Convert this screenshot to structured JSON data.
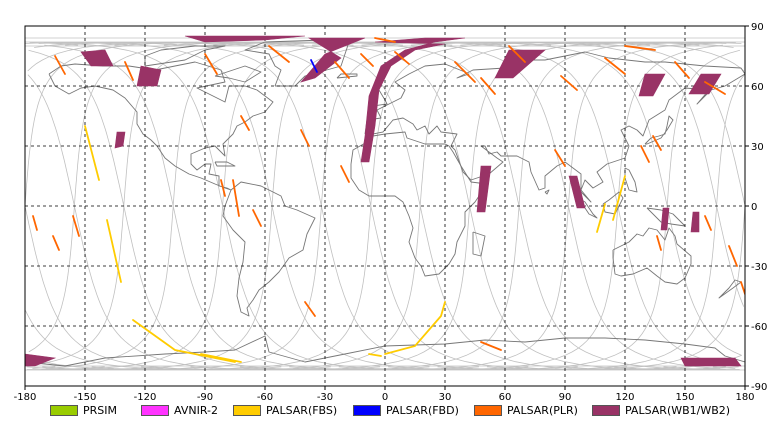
{
  "map": {
    "x_axis": {
      "min": -180,
      "max": 180,
      "ticks": [
        -180,
        -150,
        -120,
        -90,
        -60,
        -30,
        0,
        30,
        60,
        90,
        120,
        150,
        180
      ]
    },
    "y_axis": {
      "min": -90,
      "max": 90,
      "ticks": [
        90,
        60,
        30,
        0,
        -30,
        -60,
        -90
      ]
    },
    "grid": "dashed",
    "colors": {
      "PRSIM": "#99cc00",
      "AVNIR-2": "#ff33ff",
      "PALSAR(FBS)": "#ffcc00",
      "PALSAR(FBD)": "#0000ff",
      "PALSAR(PLR)": "#ff6600",
      "PALSAR(WB1/WB2)": "#993366",
      "orbit": "#c0c0c0",
      "coast": "#777777"
    }
  },
  "legend": [
    {
      "label": "PRSIM",
      "color": "#99cc00"
    },
    {
      "label": "AVNIR-2",
      "color": "#ff33ff"
    },
    {
      "label": "PALSAR(FBS)",
      "color": "#ffcc00"
    },
    {
      "label": "PALSAR(FBD)",
      "color": "#0000ff"
    },
    {
      "label": "PALSAR(PLR)",
      "color": "#ff6600"
    },
    {
      "label": "PALSAR(WB1/WB2)",
      "color": "#993366"
    }
  ],
  "chart_data": {
    "type": "scatter",
    "title": "",
    "xlim": [
      -180,
      180
    ],
    "ylim": [
      -90,
      90
    ],
    "series": [
      {
        "name": "PALSAR(WB1/WB2)",
        "type": "swath",
        "color": "#993366",
        "segments": [
          [
            [
              -5,
              82
            ],
            [
              20,
              84
            ],
            [
              40,
              84
            ],
            [
              25,
              82
            ],
            [
              10,
              78
            ],
            [
              -2,
              70
            ],
            [
              -8,
              55
            ],
            [
              -10,
              35
            ],
            [
              -12,
              22
            ],
            [
              -8,
              22
            ],
            [
              -5,
              40
            ],
            [
              -3,
              58
            ],
            [
              3,
              70
            ],
            [
              15,
              78
            ],
            [
              30,
              81
            ]
          ],
          [
            [
              -38,
              84
            ],
            [
              -10,
              84
            ],
            [
              -30,
              76
            ],
            [
              -42,
              62
            ],
            [
              -35,
              64
            ],
            [
              -22,
              74
            ]
          ],
          [
            [
              -100,
              85
            ],
            [
              -40,
              85
            ],
            [
              -60,
              83
            ],
            [
              -90,
              82
            ]
          ],
          [
            [
              -152,
              77
            ],
            [
              -140,
              78
            ],
            [
              -136,
              70
            ],
            [
              -147,
              70
            ]
          ],
          [
            [
              -122,
              70
            ],
            [
              -112,
              68
            ],
            [
              -114,
              60
            ],
            [
              -124,
              60
            ]
          ],
          [
            [
              -134,
              37
            ],
            [
              -130,
              37
            ],
            [
              -131,
              30
            ],
            [
              -135,
              29
            ]
          ],
          [
            [
              48,
              20
            ],
            [
              53,
              20
            ],
            [
              50,
              -3
            ],
            [
              46,
              -3
            ]
          ],
          [
            [
              92,
              15
            ],
            [
              96,
              15
            ],
            [
              100,
              -1
            ],
            [
              96,
              -1
            ]
          ],
          [
            [
              62,
              78
            ],
            [
              80,
              78
            ],
            [
              64,
              64
            ],
            [
              55,
              64
            ]
          ],
          [
            [
              130,
              66
            ],
            [
              140,
              66
            ],
            [
              134,
              55
            ],
            [
              127,
              55
            ]
          ],
          [
            [
              158,
              66
            ],
            [
              168,
              66
            ],
            [
              162,
              56
            ],
            [
              152,
              56
            ]
          ],
          [
            [
              139,
              -1
            ],
            [
              142,
              -1
            ],
            [
              141,
              -12
            ],
            [
              138,
              -12
            ]
          ],
          [
            [
              154,
              -3
            ],
            [
              157,
              -3
            ],
            [
              157,
              -13
            ],
            [
              153,
              -13
            ]
          ],
          [
            [
              -180,
              -74
            ],
            [
              -165,
              -76
            ],
            0,
            [
              -175,
              -80
            ],
            [
              -180,
              -80
            ]
          ],
          [
            [
              148,
              -76
            ],
            [
              175,
              -76
            ],
            [
              178,
              -80
            ],
            [
              150,
              -80
            ]
          ]
        ]
      },
      {
        "name": "PALSAR(FBS)",
        "type": "track",
        "color": "#ffcc00",
        "segments": [
          [
            [
              -150,
              40
            ],
            [
              -143,
              13
            ]
          ],
          [
            [
              -139,
              -7
            ],
            [
              -132,
              -38
            ]
          ],
          [
            [
              -126,
              -57
            ],
            [
              -105,
              -72
            ],
            [
              -85,
              -76
            ],
            [
              -75,
              -78
            ]
          ],
          [
            [
              -92,
              -74
            ],
            [
              -72,
              -78
            ]
          ],
          [
            [
              0,
              -74
            ],
            [
              15,
              -70
            ],
            [
              28,
              -55
            ],
            [
              30,
              -48
            ]
          ],
          [
            [
              -2,
              -75
            ],
            [
              -8,
              -74
            ]
          ],
          [
            [
              114,
              -7
            ],
            [
              120,
              15
            ]
          ],
          [
            [
              106,
              -13
            ],
            [
              110,
              1
            ]
          ]
        ]
      },
      {
        "name": "PALSAR(FBD)",
        "type": "track",
        "color": "#0000ff",
        "segments": [
          [
            [
              -37,
              73
            ],
            [
              -34,
              67
            ]
          ]
        ]
      },
      {
        "name": "PALSAR(PLR)",
        "type": "track",
        "color": "#ff6600",
        "segments": [
          [
            [
              -165,
              75
            ],
            [
              -160,
              66
            ]
          ],
          [
            [
              -130,
              72
            ],
            [
              -126,
              63
            ]
          ],
          [
            [
              -90,
              76
            ],
            [
              -84,
              66
            ]
          ],
          [
            [
              -58,
              80
            ],
            [
              -48,
              72
            ]
          ],
          [
            [
              -12,
              76
            ],
            [
              -6,
              70
            ]
          ],
          [
            [
              5,
              77
            ],
            [
              12,
              71
            ]
          ],
          [
            [
              -25,
              72
            ],
            [
              -18,
              64
            ]
          ],
          [
            [
              -5,
              84
            ],
            [
              5,
              82
            ]
          ],
          [
            [
              35,
              72
            ],
            [
              45,
              62
            ]
          ],
          [
            [
              48,
              64
            ],
            [
              55,
              56
            ]
          ],
          [
            [
              62,
              80
            ],
            [
              70,
              72
            ]
          ],
          [
            [
              88,
              65
            ],
            [
              96,
              58
            ]
          ],
          [
            [
              110,
              74
            ],
            [
              120,
              66
            ]
          ],
          [
            [
              120,
              80
            ],
            [
              135,
              78
            ]
          ],
          [
            [
              145,
              72
            ],
            [
              152,
              64
            ]
          ],
          [
            [
              160,
              62
            ],
            [
              170,
              56
            ]
          ],
          [
            [
              -72,
              45
            ],
            [
              -68,
              38
            ]
          ],
          [
            [
              -42,
              38
            ],
            [
              -38,
              30
            ]
          ],
          [
            [
              -22,
              20
            ],
            [
              -18,
              12
            ]
          ],
          [
            [
              -40,
              -48
            ],
            [
              -35,
              -55
            ]
          ],
          [
            [
              -176,
              -5
            ],
            [
              -174,
              -12
            ]
          ],
          [
            [
              -166,
              -15
            ],
            [
              -163,
              -22
            ]
          ],
          [
            [
              -66,
              -2
            ],
            [
              -62,
              -10
            ]
          ],
          [
            [
              -82,
              13
            ],
            [
              -80,
              5
            ]
          ],
          [
            [
              -76,
              13
            ],
            [
              -73,
              -5
            ]
          ],
          [
            [
              128,
              30
            ],
            [
              132,
              22
            ]
          ],
          [
            [
              134,
              35
            ],
            [
              138,
              28
            ]
          ],
          [
            [
              172,
              -20
            ],
            [
              176,
              -30
            ]
          ],
          [
            [
              -156,
              -5
            ],
            [
              -153,
              -15
            ]
          ],
          [
            [
              160,
              -5
            ],
            [
              163,
              -12
            ]
          ],
          [
            [
              85,
              28
            ],
            [
              90,
              20
            ]
          ],
          [
            [
              178,
              -38
            ],
            [
              180,
              -44
            ]
          ],
          [
            [
              48,
              -68
            ],
            [
              58,
              -72
            ]
          ],
          [
            [
              136,
              -15
            ],
            [
              138,
              -22
            ]
          ]
        ]
      }
    ]
  }
}
